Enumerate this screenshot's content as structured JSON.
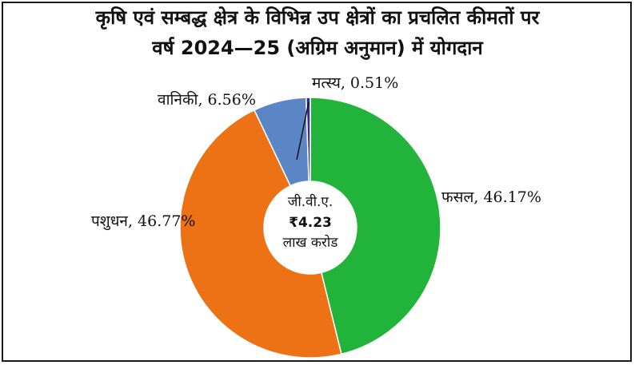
{
  "chart_data": {
    "type": "pie",
    "title_line1": "कृषि एवं सम्बद्ध क्षेत्र के विभिन्न उप क्षेत्रों का प्रचलित कीमतों पर",
    "title_line2": "वर्ष 2024—25 (अग्रिम अनुमान) में योगदान",
    "center_label": {
      "line1": "जी.वी.ए.",
      "line2": "₹4.23",
      "line3": "लाख करोड"
    },
    "slices": [
      {
        "name": "फसल",
        "value": 46.17,
        "label": "फसल, 46.17%",
        "color": "#22b33a"
      },
      {
        "name": "पशुधन",
        "value": 46.77,
        "label": "पशुधन, 46.77%",
        "color": "#ed7215"
      },
      {
        "name": "वानिकी",
        "value": 6.56,
        "label": "वानिकी, 6.56%",
        "color": "#5b86c6"
      },
      {
        "name": "मत्स्य",
        "value": 0.51,
        "label": "मत्स्य, 0.51%",
        "color": "#3b2a8c"
      }
    ]
  }
}
